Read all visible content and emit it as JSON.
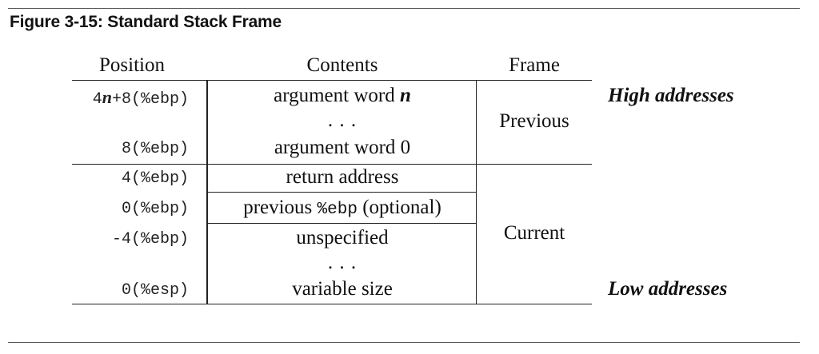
{
  "figure": {
    "title": "Figure 3-15:  Standard Stack Frame"
  },
  "headers": {
    "position": "Position",
    "contents": "Contents",
    "frame": "Frame"
  },
  "rows": [
    {
      "position_pre": "4",
      "position_var": "n",
      "position_post": "+8(%ebp)",
      "contents": "argument word ",
      "contents_var": "n"
    },
    {
      "position": "",
      "contents": ". . ."
    },
    {
      "position": "8(%ebp)",
      "contents": "argument word 0"
    },
    {
      "position": "4(%ebp)",
      "contents": "return address"
    },
    {
      "position": "0(%ebp)",
      "contents_pre": "previous ",
      "contents_mono": "%ebp",
      "contents_post": " (optional)"
    },
    {
      "position": "-4(%ebp)",
      "contents": "unspecified"
    },
    {
      "position": "",
      "contents": ". . ."
    },
    {
      "position": "0(%esp)",
      "contents": "variable size"
    }
  ],
  "frames": {
    "previous": "Previous",
    "current": "Current"
  },
  "addresses": {
    "high": "High addresses",
    "low": "Low addresses"
  }
}
